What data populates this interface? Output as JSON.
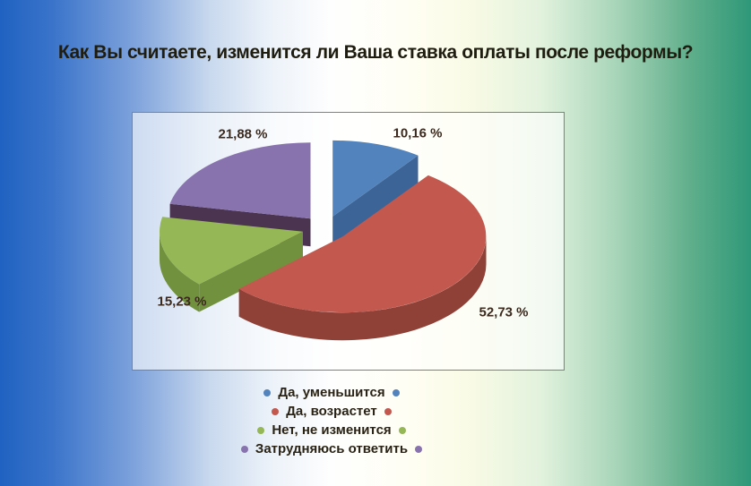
{
  "title": "Как Вы считаете, изменится ли Ваша ставка оплаты после реформы?",
  "chart_data": {
    "type": "pie",
    "style": "3d-exploded",
    "start_angle": "top",
    "direction": "clockwise",
    "unit": "%",
    "legend_position": "bottom",
    "slices": [
      {
        "label": "Да, уменьшится",
        "value": 10.16,
        "value_label": "10,16 %",
        "color": "#5283BC",
        "side_color": "#3D6496"
      },
      {
        "label": "Да, возрастет",
        "value": 52.73,
        "value_label": "52,73 %",
        "color": "#C2584E",
        "side_color": "#8F4037"
      },
      {
        "label": "Нет, не изменится",
        "value": 15.23,
        "value_label": "15,23 %",
        "color": "#95B755",
        "side_color": "#71913F"
      },
      {
        "label": "Затрудняюсь ответить",
        "value": 21.88,
        "value_label": "21,88 %",
        "color": "#8973AE",
        "side_color": "#4A3450"
      }
    ]
  },
  "colors": {
    "background_left": "#2062C1",
    "background_middle": "#FFFEF4",
    "background_right": "#2E9878",
    "title_text": "#1F1D10",
    "value_label_text": "#3C2A1E",
    "legend_text": "#2A2315",
    "frame_border": "#83836A"
  }
}
